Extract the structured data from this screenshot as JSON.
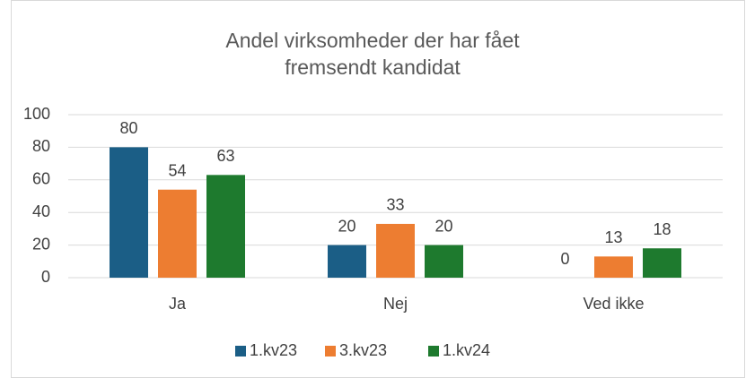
{
  "chart_data": {
    "type": "bar",
    "title": "Andel virksomheder der har fået fremsendt kandidat",
    "categories": [
      "Ja",
      "Nej",
      "Ved ikke"
    ],
    "series": [
      {
        "name": "1.kv23",
        "color": "#1b5e86",
        "values": [
          80,
          20,
          0
        ]
      },
      {
        "name": "3.kv23",
        "color": "#ed7d31",
        "values": [
          54,
          33,
          13
        ]
      },
      {
        "name": "1.kv24",
        "color": "#1e7a2e",
        "values": [
          63,
          20,
          18
        ]
      }
    ],
    "ylim": [
      0,
      100
    ],
    "yticks": [
      0,
      20,
      40,
      60,
      80,
      100
    ],
    "grid": true,
    "legend": "bottom"
  }
}
